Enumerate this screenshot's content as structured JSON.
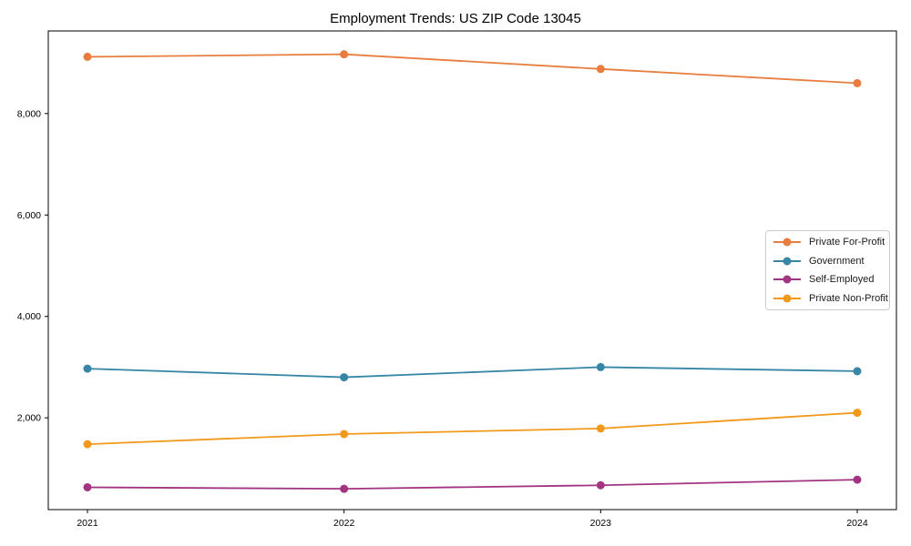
{
  "chart_data": {
    "type": "line",
    "title": "Employment Trends: US ZIP Code 13045",
    "xlabel": "",
    "ylabel": "",
    "x": [
      2021,
      2022,
      2023,
      2024
    ],
    "xtick_labels": [
      "2021",
      "2022",
      "2023",
      "2024"
    ],
    "yticks": [
      2000,
      4000,
      6000,
      8000
    ],
    "ytick_labels": [
      "2,000",
      "4,000",
      "6,000",
      "8,000"
    ],
    "ylim": [
      190,
      9630
    ],
    "grid": false,
    "marker": "circle",
    "legend_position": "right",
    "series": [
      {
        "name": "Private For-Profit",
        "color": "#E87D3E",
        "values": [
          9120,
          9170,
          8880,
          8600
        ]
      },
      {
        "name": "Government",
        "color": "#3786A5",
        "values": [
          2970,
          2800,
          3000,
          2920
        ]
      },
      {
        "name": "Self-Employed",
        "color": "#A23481",
        "values": [
          630,
          600,
          670,
          780
        ]
      },
      {
        "name": "Private Non-Profit",
        "color": "#F2981A",
        "values": [
          1480,
          1680,
          1790,
          2100
        ]
      }
    ]
  }
}
